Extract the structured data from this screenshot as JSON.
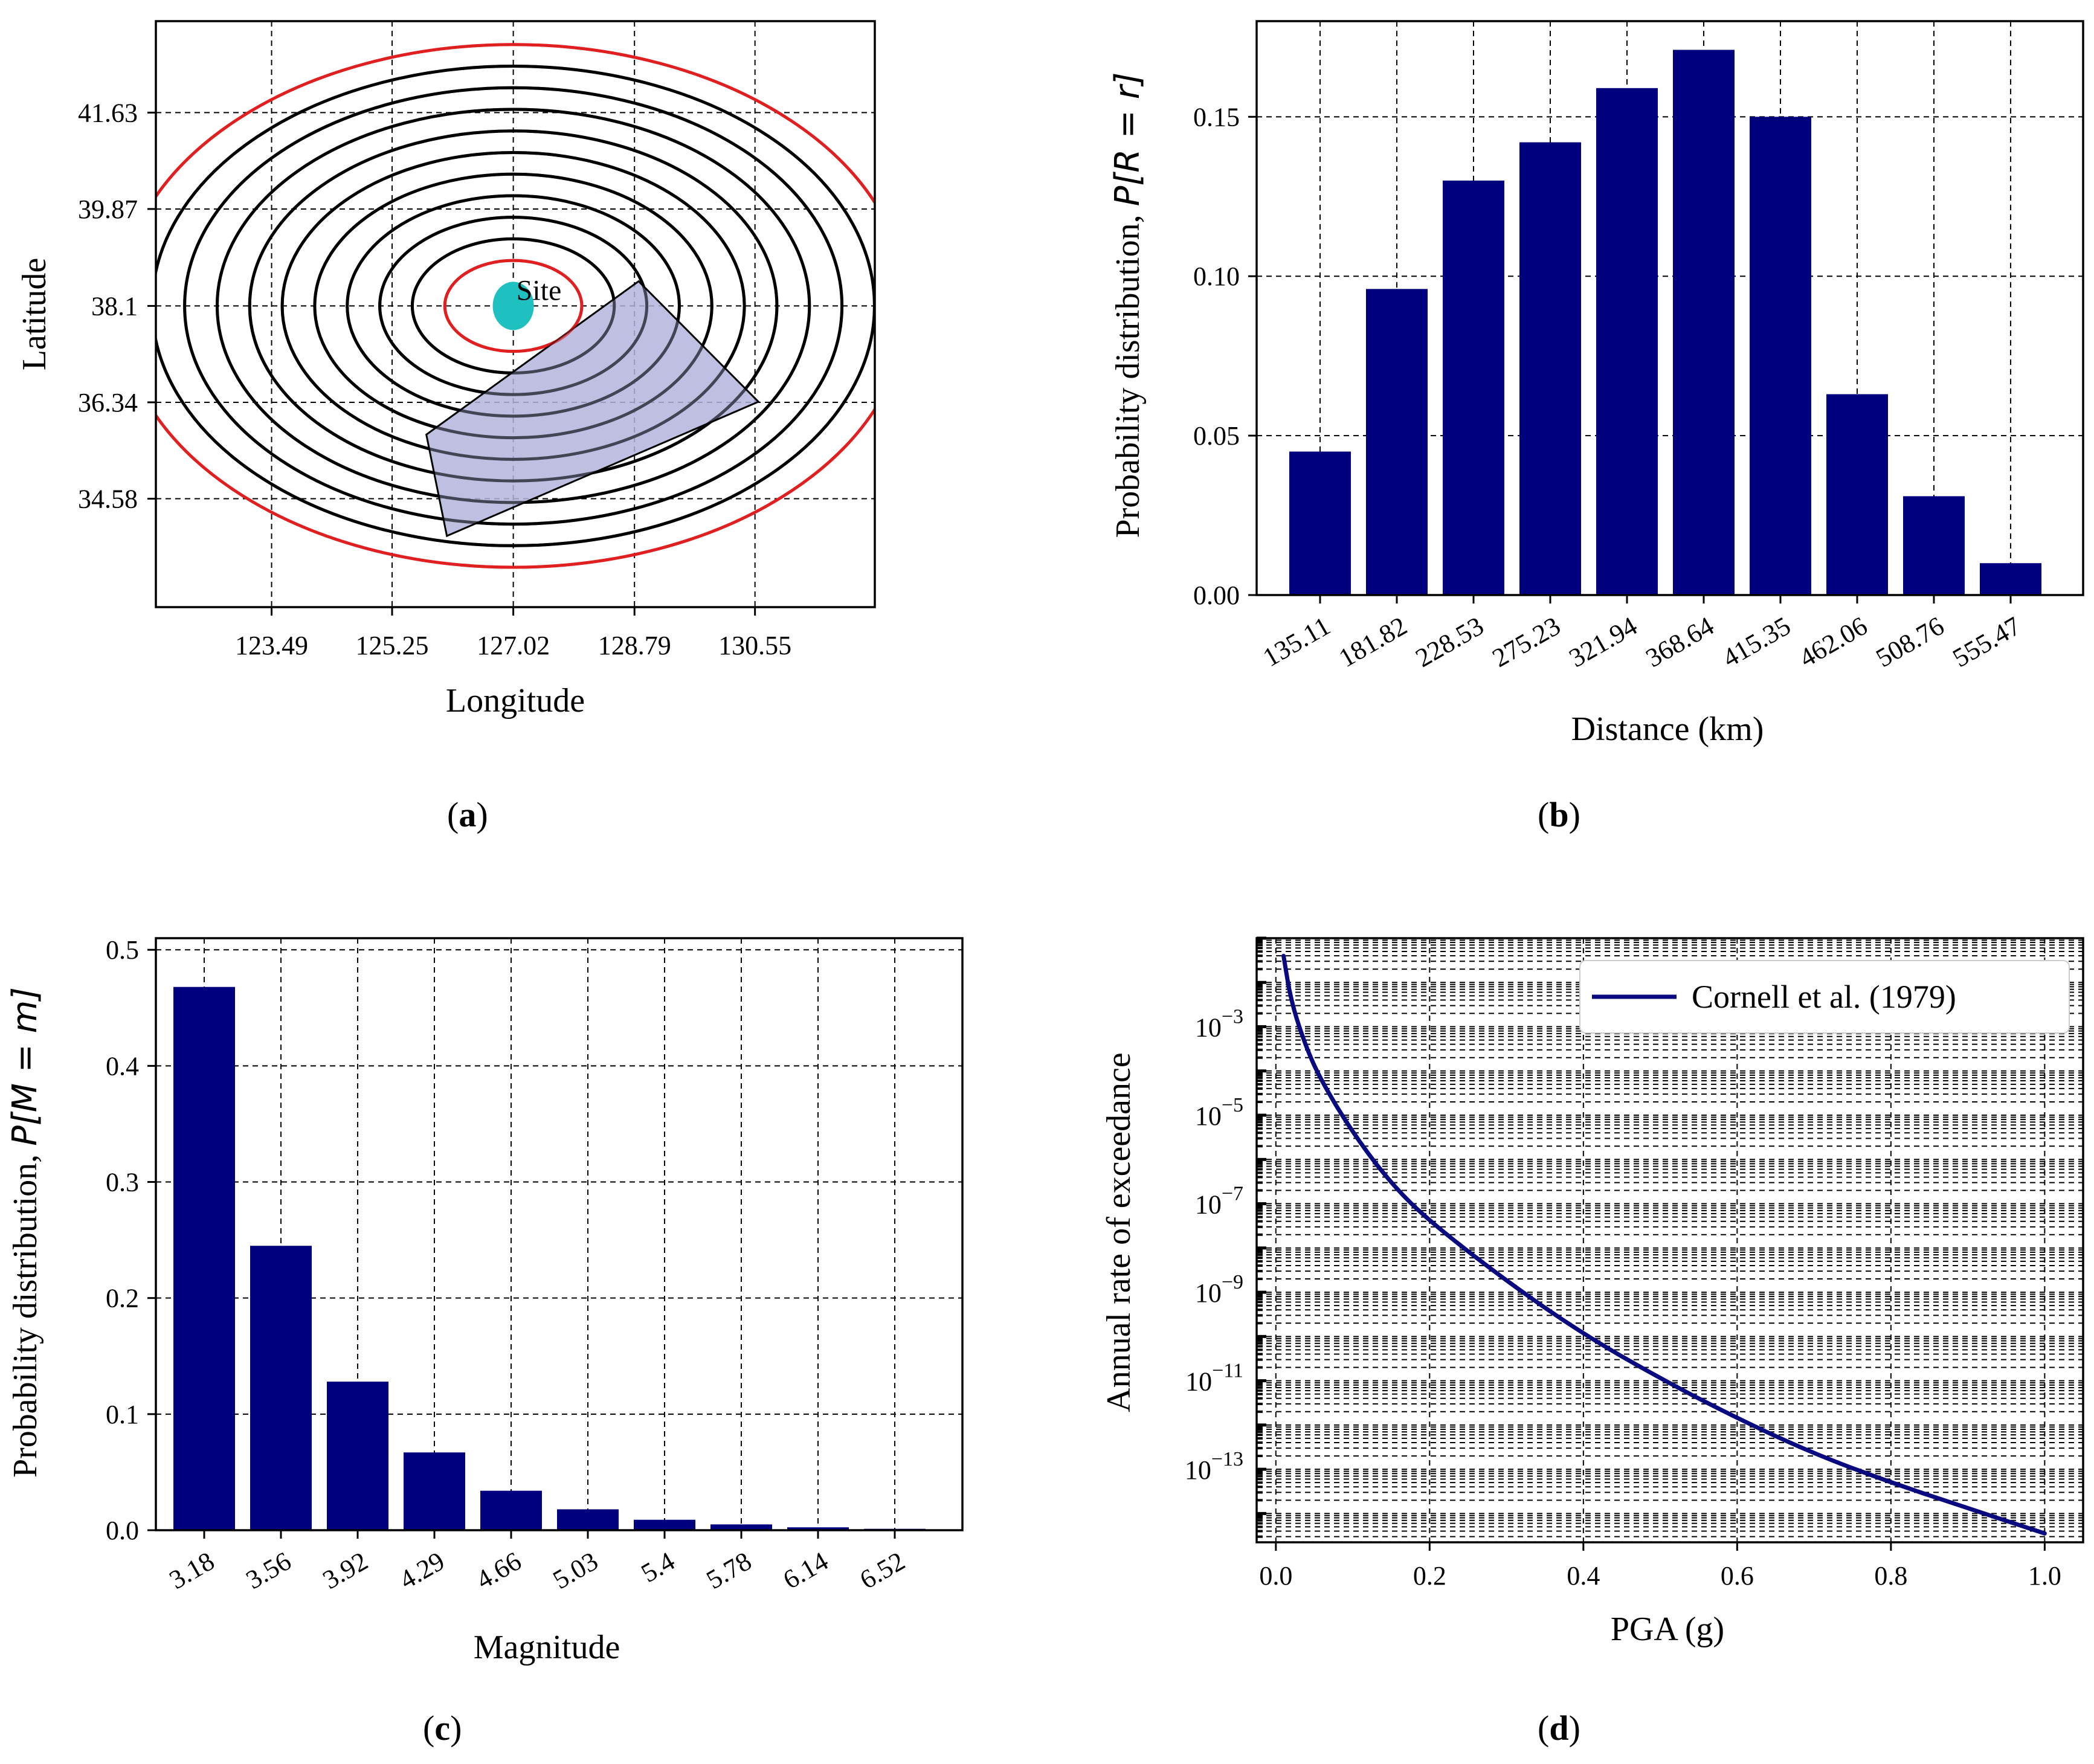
{
  "colors": {
    "bar": "#00007f",
    "curve": "#0a0a80",
    "ring": "#000000",
    "ring_boundary": "#e02020",
    "site": "#1ec0c0",
    "polygon": "#b3b4dc"
  },
  "chart_data": [
    {
      "id": "a",
      "type": "map",
      "panel_label": "(a)",
      "panel_letter": "a",
      "xlabel": "Longitude",
      "ylabel": "Latitude",
      "xticks": [
        123.49,
        125.25,
        127.02,
        128.79,
        130.55
      ],
      "xtick_labels": [
        "123.49",
        "125.25",
        "127.02",
        "128.79",
        "130.55"
      ],
      "yticks": [
        34.58,
        36.34,
        38.1,
        39.87,
        41.63
      ],
      "ytick_labels": [
        "34.58",
        "36.34",
        "38.1",
        "39.87",
        "41.63"
      ],
      "xlim": [
        121.8,
        132.3
      ],
      "ylim": [
        32.6,
        43.3
      ],
      "site": {
        "label": "Site",
        "lon": 127.02,
        "lat": 38.1
      },
      "rings": {
        "center": [
          127.02,
          38.1
        ],
        "count": 11,
        "inner_radius_deg": 1.0,
        "step_deg": 0.475
      },
      "source_polygon": [
        [
          128.85,
          38.55
        ],
        [
          130.6,
          36.35
        ],
        [
          126.05,
          33.9
        ],
        [
          125.75,
          35.75
        ]
      ]
    },
    {
      "id": "b",
      "type": "bar",
      "panel_label": "(b)",
      "panel_letter": "b",
      "title": "",
      "xlabel": "Distance (km)",
      "ylabel_text": "Probability distribution, ",
      "ylabel_math": "P[R = r]",
      "categories": [
        "135.11",
        "181.82",
        "228.53",
        "275.23",
        "321.94",
        "368.64",
        "415.35",
        "462.06",
        "508.76",
        "555.47"
      ],
      "values": [
        0.045,
        0.096,
        0.13,
        0.142,
        0.159,
        0.171,
        0.15,
        0.063,
        0.031,
        0.01
      ],
      "yticks": [
        0.0,
        0.05,
        0.1,
        0.15
      ],
      "ytick_labels": [
        "0.00",
        "0.05",
        "0.10",
        "0.15"
      ],
      "ylim": [
        0,
        0.18
      ],
      "grid": true
    },
    {
      "id": "c",
      "type": "bar",
      "panel_label": "(c)",
      "panel_letter": "c",
      "title": "",
      "xlabel": "Magnitude",
      "ylabel_text": "Probability distribution, ",
      "ylabel_math": "P[M = m]",
      "categories": [
        "3.18",
        "3.56",
        "3.92",
        "4.29",
        "4.66",
        "5.03",
        "5.4",
        "5.78",
        "6.14",
        "6.52"
      ],
      "values": [
        0.468,
        0.245,
        0.128,
        0.067,
        0.034,
        0.018,
        0.009,
        0.005,
        0.0025,
        0.0012
      ],
      "yticks": [
        0.0,
        0.1,
        0.2,
        0.3,
        0.4,
        0.5
      ],
      "ytick_labels": [
        "0.0",
        "0.1",
        "0.2",
        "0.3",
        "0.4",
        "0.5"
      ],
      "ylim": [
        0,
        0.51
      ],
      "grid": true
    },
    {
      "id": "d",
      "type": "line",
      "panel_label": "(d)",
      "panel_letter": "d",
      "xlabel": "PGA (g)",
      "ylabel": "Annual rate of exceedance",
      "yscale": "log",
      "xticks": [
        0.0,
        0.2,
        0.4,
        0.6,
        0.8,
        1.0
      ],
      "xtick_labels": [
        "0.0",
        "0.2",
        "0.4",
        "0.6",
        "0.8",
        "1.0"
      ],
      "xlim": [
        -0.025,
        1.05
      ],
      "ylim_exp": [
        -14.65,
        -1.0
      ],
      "ytick_exps": [
        -3,
        -5,
        -7,
        -9,
        -11,
        -13
      ],
      "ytick_base": "10",
      "ytick_exponent_labels": [
        "−3",
        "−5",
        "−7",
        "−9",
        "−11",
        "−13"
      ],
      "series": [
        {
          "name": "Cornell et al. (1979)",
          "x": [
            0.01,
            0.02,
            0.04,
            0.06,
            0.1,
            0.15,
            0.2,
            0.3,
            0.4,
            0.5,
            0.6,
            0.7,
            0.8,
            0.9,
            1.0
          ],
          "log10_y": [
            -1.4,
            -2.45,
            -3.5,
            -4.25,
            -5.4,
            -6.55,
            -7.4,
            -8.75,
            -9.95,
            -10.95,
            -11.85,
            -12.65,
            -13.3,
            -13.88,
            -14.45
          ]
        }
      ],
      "legend_position": "top-right"
    }
  ]
}
